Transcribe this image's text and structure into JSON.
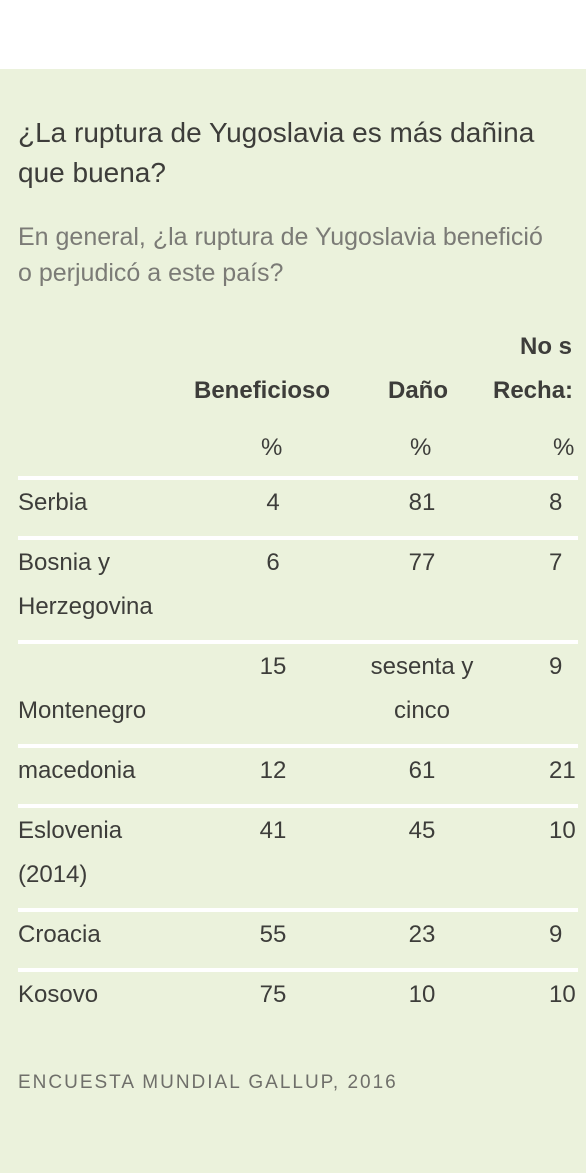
{
  "header": {
    "title": "¿La ruptura de Yugoslavia es más dañina que buena?",
    "subtitle": "En general, ¿la ruptura de Yugoslavia benefició o perjudicó a este país?"
  },
  "chart_data": {
    "type": "table",
    "title": "¿La ruptura de Yugoslavia es más dañina que buena?",
    "subtitle": "En general, ¿la ruptura de Yugoslavia benefició o perjudicó a este país?",
    "columns": [
      {
        "label": "Beneficioso",
        "unit": "%"
      },
      {
        "label": "Daño",
        "unit": "%"
      },
      {
        "label_top": "No s",
        "label": "Recha:",
        "unit": "%"
      }
    ],
    "rows": [
      {
        "country": "Serbia",
        "values": [
          "4",
          "81",
          "8"
        ]
      },
      {
        "country": "Bosnia y Herzegovina",
        "values": [
          "6",
          "77",
          "7"
        ]
      },
      {
        "country": "Montenegro",
        "values": [
          "15",
          "sesenta y cinco",
          "9"
        ]
      },
      {
        "country": "macedonia",
        "values": [
          "12",
          "61",
          "21"
        ]
      },
      {
        "country": "Eslovenia (2014)",
        "values": [
          "41",
          "45",
          "10"
        ]
      },
      {
        "country": "Croacia",
        "values": [
          "55",
          "23",
          "9"
        ]
      },
      {
        "country": "Kosovo",
        "values": [
          "75",
          "10",
          "10"
        ]
      }
    ]
  },
  "footer": {
    "source": "ENCUESTA MUNDIAL GALLUP, 2016"
  },
  "colors": {
    "panel_background": "#ebf2dc",
    "text": "#3d3d3a",
    "subtitle_text": "#7b7b76",
    "rule": "#ffffff"
  }
}
